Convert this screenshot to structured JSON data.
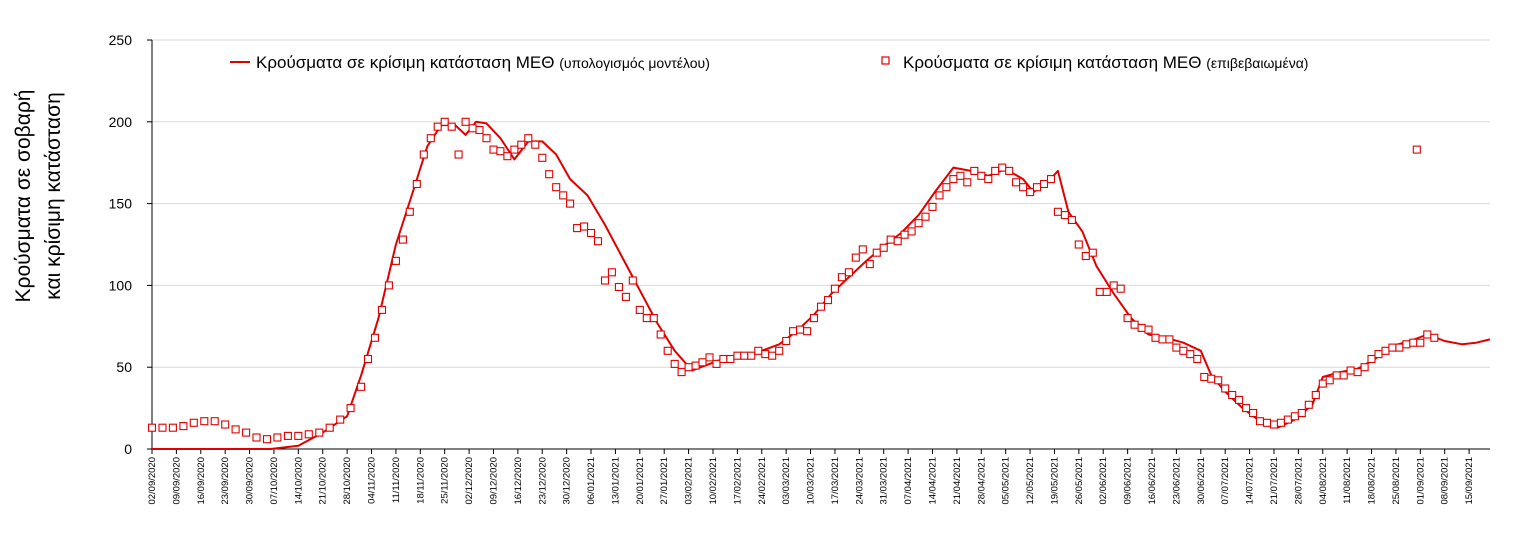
{
  "chart_data": {
    "type": "line",
    "title": "",
    "ylabel_lines": [
      "Κρούσματα σε σοβαρή",
      "και κρίσιμη κατάσταση"
    ],
    "xlabel": "",
    "ylim": [
      0,
      250
    ],
    "yticks": [
      0,
      50,
      100,
      150,
      200,
      250
    ],
    "xlim": [
      "2020-09-02",
      "2021-09-21"
    ],
    "x_tick_labels": [
      "02/09/2020",
      "09/09/2020",
      "16/09/2020",
      "23/09/2020",
      "30/09/2020",
      "07/10/2020",
      "14/10/2020",
      "21/10/2020",
      "28/10/2020",
      "04/11/2020",
      "11/11/2020",
      "18/11/2020",
      "25/11/2020",
      "02/12/2020",
      "09/12/2020",
      "16/12/2020",
      "23/12/2020",
      "30/12/2020",
      "06/01/2021",
      "13/01/2021",
      "20/01/2021",
      "27/01/2021",
      "03/02/2021",
      "10/02/2021",
      "17/02/2021",
      "24/02/2021",
      "03/03/2021",
      "10/03/2021",
      "17/03/2021",
      "24/03/2021",
      "31/03/2021",
      "07/04/2021",
      "14/04/2021",
      "21/04/2021",
      "28/04/2021",
      "05/05/2021",
      "12/05/2021",
      "19/05/2021",
      "26/05/2021",
      "02/06/2021",
      "09/06/2021",
      "16/06/2021",
      "23/06/2021",
      "30/06/2021",
      "07/07/2021",
      "14/07/2021",
      "21/07/2021",
      "28/07/2021",
      "04/08/2021",
      "11/08/2021",
      "18/08/2021",
      "25/08/2021",
      "01/09/2021",
      "08/09/2021",
      "15/09/2021"
    ],
    "grid": "horizontal",
    "legend_position": "top",
    "series": [
      {
        "name": "Κρούσματα σε κρίσιμη κατάσταση ΜΕΘ",
        "name_suffix": "(υπολογισμός μοντέλου)",
        "kind": "line",
        "color": "#e00000",
        "points": [
          [
            "2020-09-02",
            0
          ],
          [
            "2020-09-20",
            0
          ],
          [
            "2020-10-06",
            0
          ],
          [
            "2020-10-14",
            2
          ],
          [
            "2020-10-21",
            10
          ],
          [
            "2020-10-28",
            20
          ],
          [
            "2020-11-01",
            45
          ],
          [
            "2020-11-06",
            80
          ],
          [
            "2020-11-11",
            125
          ],
          [
            "2020-11-16",
            158
          ],
          [
            "2020-11-20",
            185
          ],
          [
            "2020-11-24",
            198
          ],
          [
            "2020-11-28",
            198
          ],
          [
            "2020-12-01",
            192
          ],
          [
            "2020-12-04",
            200
          ],
          [
            "2020-12-07",
            199
          ],
          [
            "2020-12-11",
            190
          ],
          [
            "2020-12-15",
            177
          ],
          [
            "2020-12-19",
            188
          ],
          [
            "2020-12-23",
            188
          ],
          [
            "2020-12-27",
            180
          ],
          [
            "2020-12-31",
            165
          ],
          [
            "2021-01-05",
            155
          ],
          [
            "2021-01-10",
            137
          ],
          [
            "2021-01-15",
            117
          ],
          [
            "2021-01-20",
            97
          ],
          [
            "2021-01-25",
            77
          ],
          [
            "2021-01-30",
            60
          ],
          [
            "2021-02-04",
            48
          ],
          [
            "2021-02-09",
            52
          ],
          [
            "2021-02-14",
            56
          ],
          [
            "2021-02-19",
            57
          ],
          [
            "2021-02-24",
            60
          ],
          [
            "2021-03-01",
            64
          ],
          [
            "2021-03-06",
            72
          ],
          [
            "2021-03-11",
            82
          ],
          [
            "2021-03-16",
            95
          ],
          [
            "2021-03-21",
            105
          ],
          [
            "2021-03-26",
            115
          ],
          [
            "2021-03-31",
            124
          ],
          [
            "2021-04-05",
            132
          ],
          [
            "2021-04-10",
            143
          ],
          [
            "2021-04-15",
            158
          ],
          [
            "2021-04-20",
            172
          ],
          [
            "2021-04-25",
            170
          ],
          [
            "2021-04-30",
            167
          ],
          [
            "2021-05-05",
            171
          ],
          [
            "2021-05-10",
            165
          ],
          [
            "2021-05-13",
            157
          ],
          [
            "2021-05-17",
            163
          ],
          [
            "2021-05-20",
            170
          ],
          [
            "2021-05-23",
            145
          ],
          [
            "2021-05-27",
            133
          ],
          [
            "2021-05-31",
            112
          ],
          [
            "2021-06-05",
            95
          ],
          [
            "2021-06-10",
            80
          ],
          [
            "2021-06-15",
            70
          ],
          [
            "2021-06-20",
            68
          ],
          [
            "2021-06-25",
            65
          ],
          [
            "2021-06-30",
            60
          ],
          [
            "2021-07-03",
            45
          ],
          [
            "2021-07-07",
            35
          ],
          [
            "2021-07-12",
            25
          ],
          [
            "2021-07-17",
            17
          ],
          [
            "2021-07-22",
            13
          ],
          [
            "2021-07-27",
            18
          ],
          [
            "2021-08-01",
            27
          ],
          [
            "2021-08-04",
            44
          ],
          [
            "2021-08-09",
            47
          ],
          [
            "2021-08-14",
            49
          ],
          [
            "2021-08-19",
            55
          ],
          [
            "2021-08-24",
            63
          ],
          [
            "2021-08-29",
            66
          ],
          [
            "2021-09-03",
            70
          ],
          [
            "2021-09-08",
            66
          ],
          [
            "2021-09-13",
            64
          ],
          [
            "2021-09-17",
            65
          ],
          [
            "2021-09-21",
            67
          ]
        ]
      },
      {
        "name": "Κρούσματα σε κρίσιμη κατάσταση ΜΕΘ",
        "name_suffix": "(επιβεβαιωμένα)",
        "kind": "scatter",
        "marker": "open-square",
        "color": "#e00000",
        "points": [
          [
            "2020-09-02",
            13
          ],
          [
            "2020-09-05",
            13
          ],
          [
            "2020-09-08",
            13
          ],
          [
            "2020-09-11",
            14
          ],
          [
            "2020-09-14",
            16
          ],
          [
            "2020-09-17",
            17
          ],
          [
            "2020-09-20",
            17
          ],
          [
            "2020-09-23",
            15
          ],
          [
            "2020-09-26",
            12
          ],
          [
            "2020-09-29",
            10
          ],
          [
            "2020-10-02",
            7
          ],
          [
            "2020-10-05",
            6
          ],
          [
            "2020-10-08",
            7
          ],
          [
            "2020-10-11",
            8
          ],
          [
            "2020-10-14",
            8
          ],
          [
            "2020-10-17",
            9
          ],
          [
            "2020-10-20",
            10
          ],
          [
            "2020-10-23",
            13
          ],
          [
            "2020-10-26",
            18
          ],
          [
            "2020-10-29",
            25
          ],
          [
            "2020-11-01",
            38
          ],
          [
            "2020-11-03",
            55
          ],
          [
            "2020-11-05",
            68
          ],
          [
            "2020-11-07",
            85
          ],
          [
            "2020-11-09",
            100
          ],
          [
            "2020-11-11",
            115
          ],
          [
            "2020-11-13",
            128
          ],
          [
            "2020-11-15",
            145
          ],
          [
            "2020-11-17",
            162
          ],
          [
            "2020-11-19",
            180
          ],
          [
            "2020-11-21",
            190
          ],
          [
            "2020-11-23",
            197
          ],
          [
            "2020-11-25",
            200
          ],
          [
            "2020-11-27",
            197
          ],
          [
            "2020-11-29",
            180
          ],
          [
            "2020-12-01",
            200
          ],
          [
            "2020-12-03",
            196
          ],
          [
            "2020-12-05",
            195
          ],
          [
            "2020-12-07",
            190
          ],
          [
            "2020-12-09",
            183
          ],
          [
            "2020-12-11",
            182
          ],
          [
            "2020-12-13",
            179
          ],
          [
            "2020-12-15",
            183
          ],
          [
            "2020-12-17",
            186
          ],
          [
            "2020-12-19",
            190
          ],
          [
            "2020-12-21",
            186
          ],
          [
            "2020-12-23",
            178
          ],
          [
            "2020-12-25",
            168
          ],
          [
            "2020-12-27",
            160
          ],
          [
            "2020-12-29",
            155
          ],
          [
            "2020-12-31",
            150
          ],
          [
            "2021-01-02",
            135
          ],
          [
            "2021-01-04",
            136
          ],
          [
            "2021-01-06",
            132
          ],
          [
            "2021-01-08",
            127
          ],
          [
            "2021-01-10",
            103
          ],
          [
            "2021-01-12",
            108
          ],
          [
            "2021-01-14",
            99
          ],
          [
            "2021-01-16",
            93
          ],
          [
            "2021-01-18",
            103
          ],
          [
            "2021-01-20",
            85
          ],
          [
            "2021-01-22",
            80
          ],
          [
            "2021-01-24",
            80
          ],
          [
            "2021-01-26",
            70
          ],
          [
            "2021-01-28",
            60
          ],
          [
            "2021-01-30",
            52
          ],
          [
            "2021-02-01",
            47
          ],
          [
            "2021-02-03",
            50
          ],
          [
            "2021-02-05",
            51
          ],
          [
            "2021-02-07",
            53
          ],
          [
            "2021-02-09",
            56
          ],
          [
            "2021-02-11",
            52
          ],
          [
            "2021-02-13",
            55
          ],
          [
            "2021-02-15",
            55
          ],
          [
            "2021-02-17",
            57
          ],
          [
            "2021-02-19",
            57
          ],
          [
            "2021-02-21",
            57
          ],
          [
            "2021-02-23",
            60
          ],
          [
            "2021-02-25",
            58
          ],
          [
            "2021-02-27",
            57
          ],
          [
            "2021-03-01",
            60
          ],
          [
            "2021-03-03",
            66
          ],
          [
            "2021-03-05",
            72
          ],
          [
            "2021-03-07",
            73
          ],
          [
            "2021-03-09",
            72
          ],
          [
            "2021-03-11",
            80
          ],
          [
            "2021-03-13",
            87
          ],
          [
            "2021-03-15",
            91
          ],
          [
            "2021-03-17",
            98
          ],
          [
            "2021-03-19",
            105
          ],
          [
            "2021-03-21",
            108
          ],
          [
            "2021-03-23",
            117
          ],
          [
            "2021-03-25",
            122
          ],
          [
            "2021-03-27",
            113
          ],
          [
            "2021-03-29",
            120
          ],
          [
            "2021-03-31",
            123
          ],
          [
            "2021-04-02",
            128
          ],
          [
            "2021-04-04",
            127
          ],
          [
            "2021-04-06",
            131
          ],
          [
            "2021-04-08",
            133
          ],
          [
            "2021-04-10",
            138
          ],
          [
            "2021-04-12",
            142
          ],
          [
            "2021-04-14",
            148
          ],
          [
            "2021-04-16",
            155
          ],
          [
            "2021-04-18",
            160
          ],
          [
            "2021-04-20",
            165
          ],
          [
            "2021-04-22",
            167
          ],
          [
            "2021-04-24",
            163
          ],
          [
            "2021-04-26",
            170
          ],
          [
            "2021-04-28",
            167
          ],
          [
            "2021-04-30",
            165
          ],
          [
            "2021-05-02",
            170
          ],
          [
            "2021-05-04",
            172
          ],
          [
            "2021-05-06",
            170
          ],
          [
            "2021-05-08",
            163
          ],
          [
            "2021-05-10",
            160
          ],
          [
            "2021-05-12",
            157
          ],
          [
            "2021-05-14",
            160
          ],
          [
            "2021-05-16",
            162
          ],
          [
            "2021-05-18",
            165
          ],
          [
            "2021-05-20",
            145
          ],
          [
            "2021-05-22",
            143
          ],
          [
            "2021-05-24",
            140
          ],
          [
            "2021-05-26",
            125
          ],
          [
            "2021-05-28",
            118
          ],
          [
            "2021-05-30",
            120
          ],
          [
            "2021-06-01",
            96
          ],
          [
            "2021-06-03",
            96
          ],
          [
            "2021-06-05",
            100
          ],
          [
            "2021-06-07",
            98
          ],
          [
            "2021-06-09",
            80
          ],
          [
            "2021-06-11",
            76
          ],
          [
            "2021-06-13",
            74
          ],
          [
            "2021-06-15",
            73
          ],
          [
            "2021-06-17",
            68
          ],
          [
            "2021-06-19",
            67
          ],
          [
            "2021-06-21",
            67
          ],
          [
            "2021-06-23",
            62
          ],
          [
            "2021-06-25",
            60
          ],
          [
            "2021-06-27",
            58
          ],
          [
            "2021-06-29",
            55
          ],
          [
            "2021-07-01",
            44
          ],
          [
            "2021-07-03",
            43
          ],
          [
            "2021-07-05",
            42
          ],
          [
            "2021-07-07",
            37
          ],
          [
            "2021-07-09",
            33
          ],
          [
            "2021-07-11",
            30
          ],
          [
            "2021-07-13",
            25
          ],
          [
            "2021-07-15",
            22
          ],
          [
            "2021-07-17",
            17
          ],
          [
            "2021-07-19",
            16
          ],
          [
            "2021-07-21",
            15
          ],
          [
            "2021-07-23",
            16
          ],
          [
            "2021-07-25",
            18
          ],
          [
            "2021-07-27",
            20
          ],
          [
            "2021-07-29",
            22
          ],
          [
            "2021-07-31",
            27
          ],
          [
            "2021-08-02",
            33
          ],
          [
            "2021-08-04",
            40
          ],
          [
            "2021-08-06",
            42
          ],
          [
            "2021-08-08",
            45
          ],
          [
            "2021-08-10",
            45
          ],
          [
            "2021-08-12",
            48
          ],
          [
            "2021-08-14",
            47
          ],
          [
            "2021-08-16",
            50
          ],
          [
            "2021-08-18",
            55
          ],
          [
            "2021-08-20",
            58
          ],
          [
            "2021-08-22",
            60
          ],
          [
            "2021-08-24",
            62
          ],
          [
            "2021-08-26",
            62
          ],
          [
            "2021-08-28",
            64
          ],
          [
            "2021-08-30",
            65
          ],
          [
            "2021-09-01",
            65
          ],
          [
            "2021-08-31",
            183
          ],
          [
            "2021-09-03",
            70
          ],
          [
            "2021-09-05",
            68
          ]
        ]
      }
    ]
  }
}
